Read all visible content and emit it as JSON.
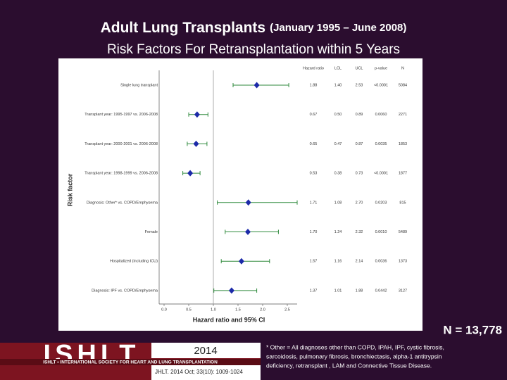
{
  "chart_data": {
    "type": "forest",
    "title": "Adult Lung Transplants",
    "period": "(January 1995 – June 2008)",
    "subtitle": "Risk Factors For Retransplantation within 5 Years",
    "ylabel": "Risk factor",
    "xlabel": "Hazard ratio and 95% CI",
    "columns": [
      "Hazard ratio",
      "LCL",
      "UCL",
      "p-value",
      "N"
    ],
    "categories": [
      "Single lung transplant",
      "Transplant year: 1995-1997 vs. 2006-2008",
      "Transplant year: 2000-2001 vs. 2006-2008",
      "Transplant year: 1998-1999 vs. 2006-2008",
      "Diagnosis: Other* vs. COPD/Emphysema",
      "Female",
      "Hospitalized (including ICU)",
      "Diagnosis: IPF vs. COPD/Emphysema"
    ],
    "values": [
      1.88,
      0.67,
      0.65,
      0.53,
      1.71,
      1.7,
      1.57,
      1.37
    ],
    "value_labels": [
      "1.88",
      "0.67",
      "0.65",
      "0.53",
      "1.71",
      "1.70",
      "1.57",
      "1.37"
    ],
    "lower": [
      1.4,
      0.5,
      0.47,
      0.38,
      1.08,
      1.24,
      1.16,
      1.01
    ],
    "lower_labels": [
      "1.40",
      "0.50",
      "0.47",
      "0.38",
      "1.08",
      "1.24",
      "1.16",
      "1.01"
    ],
    "upper": [
      2.53,
      0.89,
      0.87,
      0.73,
      2.7,
      2.32,
      2.14,
      1.88
    ],
    "upper_labels": [
      "2.53",
      "0.89",
      "0.87",
      "0.73",
      "2.70",
      "2.32",
      "2.14",
      "1.88"
    ],
    "p_values": [
      "<0.0001",
      "0.0060",
      "0.0035",
      "<0.0001",
      "0.0203",
      "0.0010",
      "0.0036",
      "0.0442"
    ],
    "n_values": [
      "5084",
      "2271",
      "1853",
      "1877",
      "815",
      "5489",
      "1373",
      "3127"
    ],
    "reference": 1,
    "xlim": [
      -0.1,
      2.7
    ],
    "xticks": [
      {
        "value": 0,
        "label": "0.0"
      },
      0.5,
      {
        "value": 1,
        "label": "1.0"
      },
      1.5,
      {
        "value": 2,
        "label": "2.0"
      },
      2.5
    ],
    "marker_color": "#1c2aa8",
    "ci_color": "#2f8a3c"
  },
  "n_label": "N = 13,778",
  "footnote": [
    "* Other = All diagnoses other than COPD, IPAH, IPF, cystic fibrosis,",
    "sarcoidosis, pulmonary fibrosis, bronchiectasis, alpha-1 antitrypsin",
    "deficiency, retransplant , LAM and Connective Tissue Disease."
  ],
  "logo": {
    "name": "ISHLT",
    "banner": "ISHLT • INTERNATIONAL SOCIETY FOR HEART AND LUNG TRANSPLANTATION",
    "year": "2014",
    "citation": "JHLT. 2014 Oct; 33(10): 1009-1024"
  }
}
